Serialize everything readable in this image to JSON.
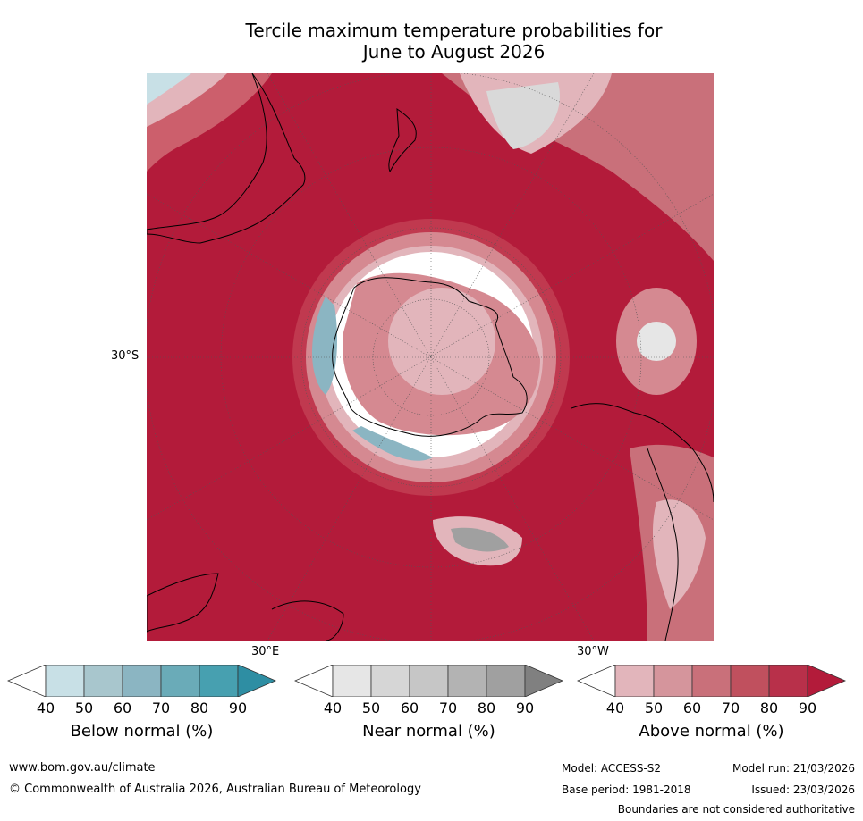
{
  "title": {
    "line1": "Tercile maximum temperature probabilities for",
    "line2": "June to August 2026"
  },
  "map": {
    "projection": "south-polar-stereographic",
    "lat_label": "30°S",
    "lon_labels": [
      "30°E",
      "30°W"
    ],
    "colors": {
      "ocean_above": "#b31b3a",
      "above_80": "#c0394f",
      "above_70": "#cc5f6c",
      "above_60": "#d58991",
      "above_50": "#e2b5bb",
      "near": "#d9d9d9",
      "below": "#8fb8c4",
      "coastline": "#000000"
    }
  },
  "colorbars": [
    {
      "id": "below",
      "label": "Below normal (%)",
      "ticks": [
        "40",
        "50",
        "60",
        "70",
        "80",
        "90"
      ],
      "colors": [
        "#ffffff",
        "#c8e0e6",
        "#a8c6cd",
        "#8bb5c2",
        "#6aabb8",
        "#47a0b0",
        "#2e8ea3"
      ]
    },
    {
      "id": "near",
      "label": "Near normal (%)",
      "ticks": [
        "40",
        "50",
        "60",
        "70",
        "80",
        "90"
      ],
      "colors": [
        "#ffffff",
        "#e6e6e6",
        "#d6d6d6",
        "#c6c6c6",
        "#b3b3b3",
        "#a0a0a0",
        "#808080"
      ]
    },
    {
      "id": "above",
      "label": "Above normal (%)",
      "ticks": [
        "40",
        "50",
        "60",
        "70",
        "80",
        "90"
      ],
      "colors": [
        "#ffffff",
        "#e2b5bb",
        "#d5959c",
        "#c9707a",
        "#c0505e",
        "#b8304a",
        "#b31b3a"
      ]
    }
  ],
  "footer": {
    "url": "www.bom.gov.au/climate",
    "copyright": "© Commonwealth of Australia 2026, Australian Bureau of Meteorology",
    "model": "Model: ACCESS-S2",
    "model_run": "Model run: 21/03/2026",
    "base_period": "Base period: 1981-2018",
    "issued": "Issued: 23/03/2026",
    "disclaimer": "Boundaries are not considered authoritative"
  }
}
